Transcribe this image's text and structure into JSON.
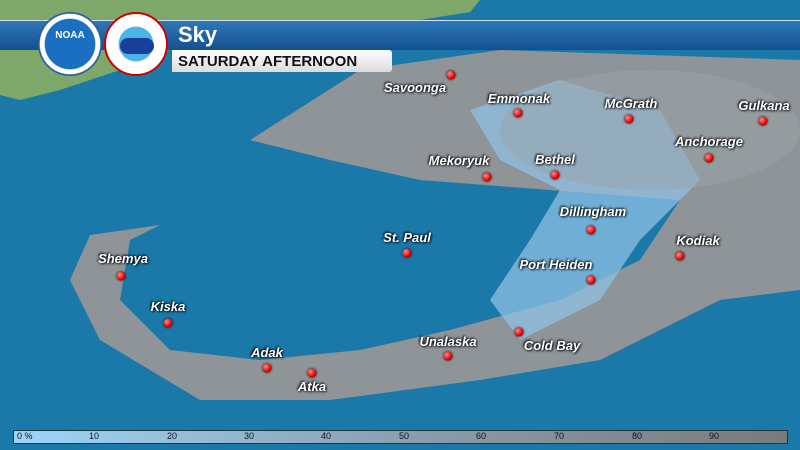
{
  "header": {
    "title": "Sky",
    "subtitle": "SATURDAY AFTERNOON",
    "logos": [
      "NOAA",
      "National Weather Service"
    ]
  },
  "colors": {
    "ocean": "#1a79a9",
    "clear": "#9ed4f8",
    "cloudy": "#7a7a7a",
    "land": "#7ea86a",
    "dot": "#dd0000"
  },
  "cities": [
    {
      "name": "Savoonga"
    },
    {
      "name": "Emmonak"
    },
    {
      "name": "McGrath"
    },
    {
      "name": "Gulkana"
    },
    {
      "name": "Anchorage"
    },
    {
      "name": "Mekoryuk"
    },
    {
      "name": "Bethel"
    },
    {
      "name": "Dillingham"
    },
    {
      "name": "Kodiak"
    },
    {
      "name": "St. Paul"
    },
    {
      "name": "Shemya"
    },
    {
      "name": "Port Heiden"
    },
    {
      "name": "Kiska"
    },
    {
      "name": "Unalaska"
    },
    {
      "name": "Cold Bay"
    },
    {
      "name": "Adak"
    },
    {
      "name": "Atka"
    }
  ],
  "legend": {
    "unit": "%",
    "ticks": [
      "0 %",
      "10",
      "20",
      "30",
      "40",
      "50",
      "60",
      "70",
      "80",
      "90"
    ]
  }
}
